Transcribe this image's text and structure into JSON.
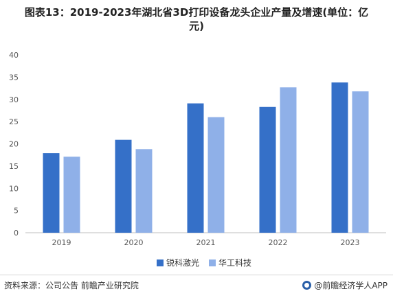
{
  "title": {
    "line1": "图表13：2019-2023年湖北省3D打印设备龙头企业产量及增速(单位：亿",
    "line2": "元)"
  },
  "legend": {
    "series0": "锐科激光",
    "series1": "华工科技"
  },
  "footer": {
    "source": "资料来源：公司公告 前瞻产业研究院",
    "brand": "@前瞻经济学人APP"
  },
  "colors": {
    "series0": "#3570c8",
    "series1": "#8fb0e8",
    "grid": "#e6e6e6",
    "axis": "#bfbfbf"
  },
  "chart_data": {
    "type": "bar",
    "categories": [
      "2019",
      "2020",
      "2021",
      "2022",
      "2023"
    ],
    "series": [
      {
        "name": "锐科激光",
        "values": [
          17.9,
          20.9,
          29.1,
          28.3,
          33.8
        ]
      },
      {
        "name": "华工科技",
        "values": [
          17.1,
          18.8,
          26.0,
          32.7,
          31.8
        ]
      }
    ],
    "yticks": [
      "0",
      "5",
      "10",
      "15",
      "20",
      "25",
      "30",
      "35",
      "40"
    ],
    "ylim": [
      0,
      40
    ],
    "grid": false,
    "legend_position": "bottom"
  }
}
